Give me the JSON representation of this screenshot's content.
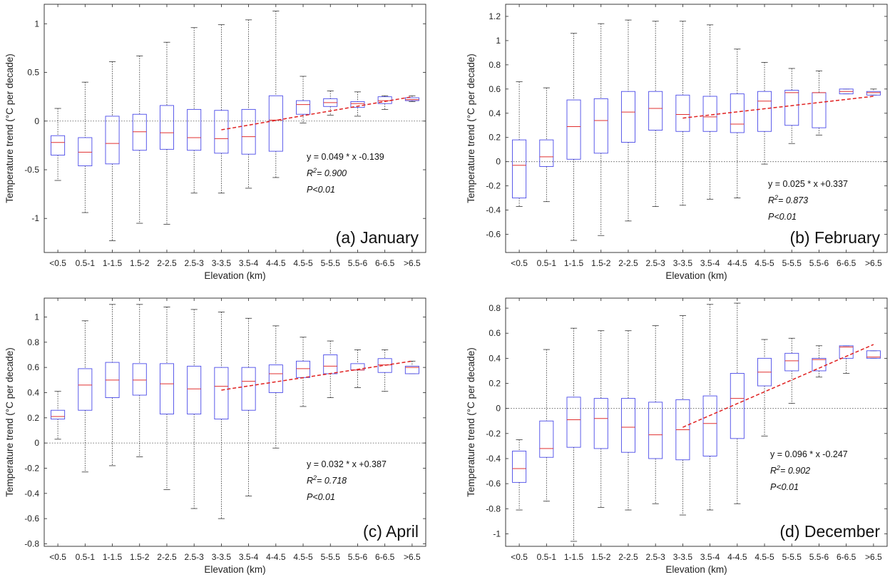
{
  "chart_data": [
    {
      "type": "box",
      "title": "(a) January",
      "xlabel": "Elevation (km)",
      "ylabel": "Temperature trend (°C per decade)",
      "categories": [
        "<0.5",
        "0.5-1",
        "1-1.5",
        "1.5-2",
        "2-2.5",
        "2.5-3",
        "3-3.5",
        "3.5-4",
        "4-4.5",
        "4.5-5",
        "5-5.5",
        "5.5-6",
        "6-6.5",
        ">6.5"
      ],
      "ylim": [
        -1.35,
        1.2
      ],
      "yticks": [
        -1,
        -0.5,
        0,
        0.5,
        1
      ],
      "ytick_labels": [
        "-1",
        "-0.5",
        "0",
        "0.5",
        "1"
      ],
      "zero_line": true,
      "boxes": [
        {
          "min": -0.61,
          "q1": -0.35,
          "median": -0.22,
          "q3": -0.15,
          "max": 0.13
        },
        {
          "min": -0.94,
          "q1": -0.46,
          "median": -0.32,
          "q3": -0.17,
          "max": 0.4
        },
        {
          "min": -1.23,
          "q1": -0.44,
          "median": -0.23,
          "q3": 0.05,
          "max": 0.61
        },
        {
          "min": -1.05,
          "q1": -0.3,
          "median": -0.11,
          "q3": 0.07,
          "max": 0.67
        },
        {
          "min": -1.06,
          "q1": -0.29,
          "median": -0.12,
          "q3": 0.16,
          "max": 0.81
        },
        {
          "min": -0.74,
          "q1": -0.3,
          "median": -0.17,
          "q3": 0.12,
          "max": 0.96
        },
        {
          "min": -0.74,
          "q1": -0.33,
          "median": -0.18,
          "q3": 0.11,
          "max": 0.99
        },
        {
          "min": -0.69,
          "q1": -0.34,
          "median": -0.16,
          "q3": 0.12,
          "max": 1.04
        },
        {
          "min": -0.58,
          "q1": -0.31,
          "median": 0.01,
          "q3": 0.26,
          "max": 1.13
        },
        {
          "min": -0.02,
          "q1": 0.07,
          "median": 0.17,
          "q3": 0.21,
          "max": 0.46
        },
        {
          "min": 0.06,
          "q1": 0.15,
          "median": 0.19,
          "q3": 0.23,
          "max": 0.31
        },
        {
          "min": 0.05,
          "q1": 0.14,
          "median": 0.18,
          "q3": 0.2,
          "max": 0.3
        },
        {
          "min": 0.12,
          "q1": 0.18,
          "median": 0.21,
          "q3": 0.25,
          "max": 0.26
        },
        {
          "min": 0.2,
          "q1": 0.21,
          "median": 0.22,
          "q3": 0.24,
          "max": 0.26
        }
      ],
      "trend": {
        "x_start": 7,
        "x_end": 14,
        "y_start": -0.09,
        "y_end": 0.25
      },
      "equation": "y = 0.049 * x -0.139",
      "r2_label": "R",
      "r2_sup": "2",
      "r2_value": "= 0.900",
      "p_text": "P<0.01",
      "colors": {
        "box": "#4a4ae8",
        "median": "#e03030",
        "trend": "#e02020",
        "whisker": "#333333"
      }
    },
    {
      "type": "box",
      "title": "(b) February",
      "xlabel": "Elevation (km)",
      "ylabel": "Temperature trend (°C per decade)",
      "categories": [
        "<0.5",
        "0.5-1",
        "1-1.5",
        "1.5-2",
        "2-2.5",
        "2.5-3",
        "3-3.5",
        "3.5-4",
        "4-4.5",
        "4.5-5",
        "5-5.5",
        "5.5-6",
        "6-6.5",
        ">6.5"
      ],
      "ylim": [
        -0.75,
        1.3
      ],
      "yticks": [
        -0.6,
        -0.4,
        -0.2,
        0,
        0.2,
        0.4,
        0.6,
        0.8,
        1,
        1.2
      ],
      "ytick_labels": [
        "-0.6",
        "-0.4",
        "-0.2",
        "0",
        "0.2",
        "0.4",
        "0.6",
        "0.8",
        "1",
        "1.2"
      ],
      "zero_line": true,
      "boxes": [
        {
          "min": -0.37,
          "q1": -0.3,
          "median": -0.03,
          "q3": 0.18,
          "max": 0.66
        },
        {
          "min": -0.33,
          "q1": -0.04,
          "median": 0.04,
          "q3": 0.18,
          "max": 0.61
        },
        {
          "min": -0.65,
          "q1": 0.02,
          "median": 0.29,
          "q3": 0.51,
          "max": 1.06
        },
        {
          "min": -0.61,
          "q1": 0.07,
          "median": 0.34,
          "q3": 0.52,
          "max": 1.14
        },
        {
          "min": -0.49,
          "q1": 0.16,
          "median": 0.41,
          "q3": 0.58,
          "max": 1.17
        },
        {
          "min": -0.37,
          "q1": 0.26,
          "median": 0.44,
          "q3": 0.58,
          "max": 1.16
        },
        {
          "min": -0.36,
          "q1": 0.25,
          "median": 0.39,
          "q3": 0.55,
          "max": 1.16
        },
        {
          "min": -0.31,
          "q1": 0.25,
          "median": 0.37,
          "q3": 0.54,
          "max": 1.13
        },
        {
          "min": -0.3,
          "q1": 0.24,
          "median": 0.31,
          "q3": 0.56,
          "max": 0.93
        },
        {
          "min": -0.02,
          "q1": 0.25,
          "median": 0.5,
          "q3": 0.58,
          "max": 0.82
        },
        {
          "min": 0.15,
          "q1": 0.3,
          "median": 0.57,
          "q3": 0.59,
          "max": 0.77
        },
        {
          "min": 0.22,
          "q1": 0.28,
          "median": 0.57,
          "q3": 0.57,
          "max": 0.75
        },
        {
          "min": 0.56,
          "q1": 0.56,
          "median": 0.58,
          "q3": 0.6,
          "max": 0.6
        },
        {
          "min": 0.55,
          "q1": 0.55,
          "median": 0.57,
          "q3": 0.58,
          "max": 0.6
        }
      ],
      "trend": {
        "x_start": 7,
        "x_end": 14,
        "y_start": 0.36,
        "y_end": 0.54
      },
      "equation": "y = 0.025 * x +0.337",
      "r2_label": "R",
      "r2_sup": "2",
      "r2_value": "= 0.873",
      "p_text": "P<0.01",
      "colors": {
        "box": "#4a4ae8",
        "median": "#e03030",
        "trend": "#e02020",
        "whisker": "#333333"
      }
    },
    {
      "type": "box",
      "title": "(c) April",
      "xlabel": "Elevation (km)",
      "ylabel": "Temperature trend (°C per decade)",
      "categories": [
        "<0.5",
        "0.5-1",
        "1-1.5",
        "1.5-2",
        "2-2.5",
        "2.5-3",
        "3-3.5",
        "3.5-4",
        "4-4.5",
        "4.5-5",
        "5-5.5",
        "5.5-6",
        "6-6.5",
        ">6.5"
      ],
      "ylim": [
        -0.82,
        1.15
      ],
      "yticks": [
        -0.8,
        -0.6,
        -0.4,
        -0.2,
        0,
        0.2,
        0.4,
        0.6,
        0.8,
        1
      ],
      "ytick_labels": [
        "-0.8",
        "-0.6",
        "-0.4",
        "-0.2",
        "0",
        "0.2",
        "0.4",
        "0.6",
        "0.8",
        "1"
      ],
      "zero_line": true,
      "boxes": [
        {
          "min": 0.03,
          "q1": 0.19,
          "median": 0.21,
          "q3": 0.26,
          "max": 0.41
        },
        {
          "min": -0.23,
          "q1": 0.26,
          "median": 0.46,
          "q3": 0.59,
          "max": 0.97
        },
        {
          "min": -0.18,
          "q1": 0.36,
          "median": 0.5,
          "q3": 0.64,
          "max": 1.1
        },
        {
          "min": -0.11,
          "q1": 0.38,
          "median": 0.5,
          "q3": 0.63,
          "max": 1.1
        },
        {
          "min": -0.37,
          "q1": 0.23,
          "median": 0.47,
          "q3": 0.63,
          "max": 1.08
        },
        {
          "min": -0.52,
          "q1": 0.23,
          "median": 0.43,
          "q3": 0.61,
          "max": 1.06
        },
        {
          "min": -0.6,
          "q1": 0.19,
          "median": 0.45,
          "q3": 0.6,
          "max": 1.04
        },
        {
          "min": -0.42,
          "q1": 0.26,
          "median": 0.49,
          "q3": 0.6,
          "max": 0.99
        },
        {
          "min": -0.04,
          "q1": 0.4,
          "median": 0.55,
          "q3": 0.62,
          "max": 0.93
        },
        {
          "min": 0.29,
          "q1": 0.52,
          "median": 0.59,
          "q3": 0.65,
          "max": 0.84
        },
        {
          "min": 0.36,
          "q1": 0.55,
          "median": 0.61,
          "q3": 0.7,
          "max": 0.81
        },
        {
          "min": 0.44,
          "q1": 0.58,
          "median": 0.58,
          "q3": 0.63,
          "max": 0.74
        },
        {
          "min": 0.41,
          "q1": 0.56,
          "median": 0.62,
          "q3": 0.67,
          "max": 0.74
        },
        {
          "min": 0.55,
          "q1": 0.55,
          "median": 0.6,
          "q3": 0.61,
          "max": 0.65
        }
      ],
      "trend": {
        "x_start": 7,
        "x_end": 14,
        "y_start": 0.42,
        "y_end": 0.65
      },
      "equation": "y = 0.032 * x +0.387",
      "r2_label": "R",
      "r2_sup": "2",
      "r2_value": "= 0.718",
      "p_text": "P<0.01",
      "colors": {
        "box": "#4a4ae8",
        "median": "#e03030",
        "trend": "#e02020",
        "whisker": "#333333"
      }
    },
    {
      "type": "box",
      "title": "(d) December",
      "xlabel": "Elevation (km)",
      "ylabel": "Temperature trend (°C per decade)",
      "categories": [
        "<0.5",
        "0.5-1",
        "1-1.5",
        "1.5-2",
        "2-2.5",
        "2.5-3",
        "3-3.5",
        "3.5-4",
        "4-4.5",
        "4.5-5",
        "5-5.5",
        "5.5-6",
        "6-6.5",
        ">6.5"
      ],
      "ylim": [
        -1.1,
        0.88
      ],
      "yticks": [
        -1,
        -0.8,
        -0.6,
        -0.4,
        -0.2,
        0,
        0.2,
        0.4,
        0.6,
        0.8
      ],
      "ytick_labels": [
        "-1",
        "-0.8",
        "-0.6",
        "-0.4",
        "-0.2",
        "0",
        "0.2",
        "0.4",
        "0.6",
        "0.8"
      ],
      "zero_line": true,
      "boxes": [
        {
          "min": -0.81,
          "q1": -0.59,
          "median": -0.48,
          "q3": -0.34,
          "max": -0.25
        },
        {
          "min": -0.74,
          "q1": -0.39,
          "median": -0.32,
          "q3": -0.1,
          "max": 0.47
        },
        {
          "min": -1.06,
          "q1": -0.31,
          "median": -0.09,
          "q3": 0.09,
          "max": 0.64
        },
        {
          "min": -0.79,
          "q1": -0.32,
          "median": -0.08,
          "q3": 0.08,
          "max": 0.62
        },
        {
          "min": -0.81,
          "q1": -0.35,
          "median": -0.15,
          "q3": 0.08,
          "max": 0.62
        },
        {
          "min": -0.76,
          "q1": -0.4,
          "median": -0.21,
          "q3": 0.05,
          "max": 0.66
        },
        {
          "min": -0.85,
          "q1": -0.41,
          "median": -0.17,
          "q3": 0.07,
          "max": 0.74
        },
        {
          "min": -0.81,
          "q1": -0.38,
          "median": -0.12,
          "q3": 0.1,
          "max": 0.83
        },
        {
          "min": -0.76,
          "q1": -0.24,
          "median": 0.08,
          "q3": 0.28,
          "max": 0.84
        },
        {
          "min": -0.22,
          "q1": 0.18,
          "median": 0.29,
          "q3": 0.4,
          "max": 0.55
        },
        {
          "min": 0.04,
          "q1": 0.3,
          "median": 0.38,
          "q3": 0.44,
          "max": 0.56
        },
        {
          "min": 0.25,
          "q1": 0.3,
          "median": 0.39,
          "q3": 0.4,
          "max": 0.5
        },
        {
          "min": 0.28,
          "q1": 0.4,
          "median": 0.49,
          "q3": 0.5,
          "max": 0.5
        },
        {
          "min": 0.4,
          "q1": 0.4,
          "median": 0.41,
          "q3": 0.46,
          "max": 0.46
        }
      ],
      "trend": {
        "x_start": 7,
        "x_end": 14,
        "y_start": -0.15,
        "y_end": 0.51
      },
      "equation": "y = 0.096 * x -0.247",
      "r2_label": "R",
      "r2_sup": "2",
      "r2_value": "= 0.902",
      "p_text": "P<0.01",
      "colors": {
        "box": "#4a4ae8",
        "median": "#e03030",
        "trend": "#e02020",
        "whisker": "#333333"
      }
    }
  ]
}
